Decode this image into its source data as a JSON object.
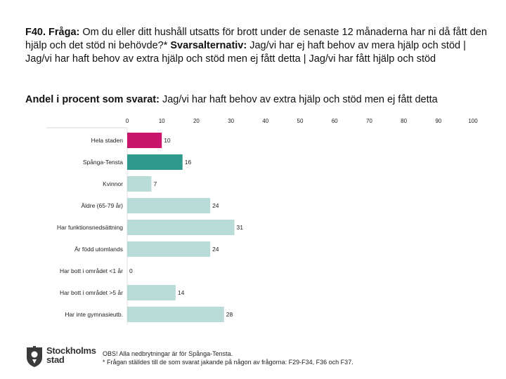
{
  "question": {
    "prefix": "F40. Fråga:",
    "text": " Om du eller ditt hushåll utsatts för brott under de senaste 12 månaderna har ni då fått den hjälp och det stöd ni behövde?* ",
    "alt_prefix": "Svarsalternativ:",
    "alt_text": " Jag/vi har ej haft behov av mera hjälp och stöd | Jag/vi har haft behov av extra hjälp och stöd men ej fått detta | Jag/vi har fått hjälp och stöd"
  },
  "subtitle": {
    "prefix": "Andel i procent som svarat:",
    "text": " Jag/vi har haft behov av extra hjälp och stöd men ej fått detta"
  },
  "chart_data": {
    "type": "bar",
    "orientation": "horizontal",
    "categories": [
      "Hela staden",
      "Spånga-Tensta",
      "Kvinnor",
      "Äldre (65-79 år)",
      "Har funktionsnedsättning",
      "Är född utomlands",
      "Har bott i området <1 år",
      "Har bott i området >5 år",
      "Har inte gymnasieutb."
    ],
    "values": [
      10,
      16,
      7,
      24,
      31,
      24,
      0,
      14,
      28
    ],
    "colors": [
      "#c8156b",
      "#2e9a8e",
      "#b9dcd8",
      "#b9dcd8",
      "#b9dcd8",
      "#b9dcd8",
      "#b9dcd8",
      "#b9dcd8",
      "#b9dcd8"
    ],
    "xlim": [
      0,
      100
    ],
    "xticks": [
      0,
      10,
      20,
      30,
      40,
      50,
      60,
      70,
      80,
      90,
      100
    ]
  },
  "logo": {
    "line1": "Stockholms",
    "line2": "stad"
  },
  "note": {
    "line1": "OBS! Alla nedbrytningar är för Spånga-Tensta.",
    "line2": "* Frågan ställdes till de som svarat jakande på någon av frågorna: F29-F34, F36 och F37."
  }
}
